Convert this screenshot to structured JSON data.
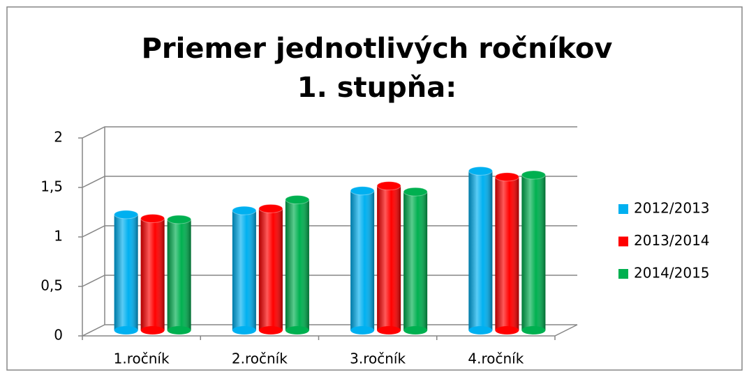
{
  "chart_data": {
    "type": "bar3d",
    "title": [
      "Priemer jednotlivých ročníkov",
      "1. stupňa:"
    ],
    "categories": [
      "1.ročník",
      "2.ročník",
      "3.ročník",
      "4.ročník"
    ],
    "series": [
      {
        "name": "2012/2013",
        "color": "#00b0f0",
        "values": [
          1.17,
          1.21,
          1.41,
          1.61
        ]
      },
      {
        "name": "2013/2014",
        "color": "#ff0000",
        "values": [
          1.13,
          1.23,
          1.46,
          1.55
        ]
      },
      {
        "name": "2014/2015",
        "color": "#00b050",
        "values": [
          1.12,
          1.32,
          1.4,
          1.57
        ]
      }
    ],
    "ylim": [
      0,
      2
    ],
    "yticks": [
      0,
      {
        "value": 0.5,
        "label": "0,5"
      },
      1,
      {
        "value": 1.5,
        "label": "1,5"
      },
      2
    ],
    "grid": true,
    "legend": "right"
  }
}
